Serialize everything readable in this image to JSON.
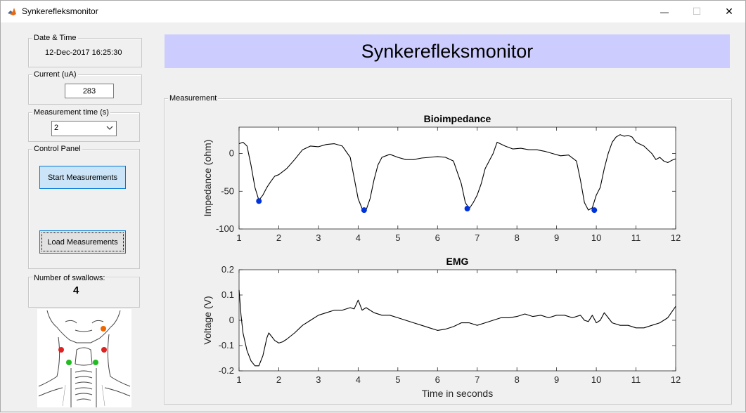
{
  "window": {
    "title": "Synkerefleksmonitor",
    "minimize_glyph": "—",
    "maximize_glyph": "☐",
    "close_glyph": "✕"
  },
  "date_time": {
    "label": "Date & Time",
    "value": "12-Dec-2017 16:25:30"
  },
  "current": {
    "label": "Current (uA)",
    "value": "283"
  },
  "measurement_time": {
    "label": "Measurement time (s)",
    "selected": "2"
  },
  "control_panel": {
    "label": "Control Panel",
    "start_button": "Start Measurements",
    "load_button": "Load Measurements"
  },
  "swallows": {
    "label": "Number of swallows:",
    "count": "4"
  },
  "header": {
    "title": "Synkerefleksmonitor"
  },
  "measurement_panel": {
    "label": "Measurement"
  },
  "colors": {
    "header_bg": "#ccccff",
    "marker_blue": "#0033dd",
    "electrode_red": "#dd2222",
    "electrode_green": "#22bb22",
    "electrode_orange": "#ee6600"
  },
  "icons": {
    "app": "matlab-logo-icon",
    "neck": "neck-electrode-diagram"
  },
  "chart_data": [
    {
      "type": "line",
      "title": "Bioimpedance",
      "xlabel": "",
      "ylabel": "Impedance (ohm)",
      "xlim": [
        1,
        12
      ],
      "ylim": [
        -100,
        35
      ],
      "xticks": [
        1,
        2,
        3,
        4,
        5,
        6,
        7,
        8,
        9,
        10,
        11,
        12
      ],
      "yticks": [
        -100,
        -50,
        0
      ],
      "grid": false,
      "x": [
        1,
        1.1,
        1.2,
        1.3,
        1.4,
        1.5,
        1.6,
        1.7,
        1.8,
        1.9,
        2,
        2.2,
        2.4,
        2.6,
        2.8,
        3,
        3.2,
        3.4,
        3.6,
        3.8,
        4,
        4.1,
        4.2,
        4.3,
        4.4,
        4.5,
        4.6,
        4.7,
        4.8,
        5,
        5.2,
        5.4,
        5.6,
        5.8,
        6,
        6.2,
        6.4,
        6.6,
        6.7,
        6.8,
        6.9,
        7,
        7.1,
        7.2,
        7.3,
        7.4,
        7.5,
        7.7,
        7.9,
        8.1,
        8.3,
        8.5,
        8.7,
        8.9,
        9.1,
        9.3,
        9.5,
        9.6,
        9.7,
        9.8,
        9.9,
        10,
        10.1,
        10.2,
        10.3,
        10.4,
        10.5,
        10.6,
        10.7,
        10.8,
        10.9,
        11,
        11.2,
        11.4,
        11.5,
        11.6,
        11.7,
        11.8,
        11.9,
        12
      ],
      "values": [
        13,
        15,
        10,
        -15,
        -45,
        -62,
        -55,
        -45,
        -37,
        -30,
        -28,
        -20,
        -8,
        5,
        10,
        9,
        12,
        13,
        10,
        -5,
        -60,
        -73,
        -75,
        -60,
        -35,
        -15,
        -5,
        -3,
        -1,
        -5,
        -8,
        -8,
        -6,
        -5,
        -4,
        -5,
        -10,
        -40,
        -65,
        -73,
        -65,
        -55,
        -40,
        -20,
        -10,
        0,
        15,
        10,
        6,
        7,
        5,
        5,
        3,
        0,
        -3,
        -2,
        -10,
        -35,
        -65,
        -75,
        -72,
        -55,
        -45,
        -20,
        0,
        15,
        22,
        25,
        23,
        24,
        22,
        15,
        10,
        0,
        -8,
        -5,
        -10,
        -12,
        -9,
        -7
      ],
      "peaks": {
        "x": [
          1.5,
          4.15,
          6.75,
          9.95
        ],
        "y": [
          -63,
          -75,
          -73,
          -75
        ]
      }
    },
    {
      "type": "line",
      "title": "EMG",
      "xlabel": "Time in seconds",
      "ylabel": "Voltage (V)",
      "xlim": [
        1,
        12
      ],
      "ylim": [
        -0.2,
        0.2
      ],
      "xticks": [
        1,
        2,
        3,
        4,
        5,
        6,
        7,
        8,
        9,
        10,
        11,
        12
      ],
      "yticks": [
        -0.2,
        -0.1,
        0,
        0.1,
        0.2
      ],
      "grid": false,
      "x": [
        1,
        1.05,
        1.1,
        1.2,
        1.3,
        1.4,
        1.5,
        1.6,
        1.7,
        1.75,
        1.8,
        1.9,
        2,
        2.1,
        2.2,
        2.4,
        2.6,
        2.8,
        3,
        3.2,
        3.4,
        3.6,
        3.8,
        3.9,
        4,
        4.05,
        4.1,
        4.2,
        4.3,
        4.4,
        4.6,
        4.8,
        5,
        5.2,
        5.4,
        5.6,
        5.8,
        6,
        6.2,
        6.4,
        6.6,
        6.8,
        7,
        7.2,
        7.4,
        7.6,
        7.8,
        8,
        8.2,
        8.4,
        8.6,
        8.8,
        9,
        9.2,
        9.4,
        9.6,
        9.7,
        9.8,
        9.9,
        10,
        10.1,
        10.2,
        10.3,
        10.4,
        10.6,
        10.8,
        11,
        11.2,
        11.4,
        11.6,
        11.8,
        12
      ],
      "values": [
        0.12,
        0.02,
        -0.05,
        -0.12,
        -0.16,
        -0.18,
        -0.18,
        -0.14,
        -0.07,
        -0.05,
        -0.06,
        -0.08,
        -0.09,
        -0.085,
        -0.075,
        -0.05,
        -0.02,
        0,
        0.02,
        0.03,
        0.04,
        0.04,
        0.05,
        0.045,
        0.08,
        0.06,
        0.04,
        0.05,
        0.04,
        0.03,
        0.02,
        0.02,
        0.01,
        0,
        -0.01,
        -0.02,
        -0.03,
        -0.04,
        -0.035,
        -0.025,
        -0.01,
        -0.01,
        -0.02,
        -0.01,
        0,
        0.01,
        0.01,
        0.015,
        0.025,
        0.015,
        0.02,
        0.01,
        0.02,
        0.02,
        0.01,
        0.02,
        0,
        -0.005,
        0.02,
        -0.01,
        0,
        0.03,
        0.01,
        -0.01,
        -0.02,
        -0.02,
        -0.03,
        -0.03,
        -0.02,
        -0.01,
        0.01,
        0.055
      ]
    }
  ]
}
